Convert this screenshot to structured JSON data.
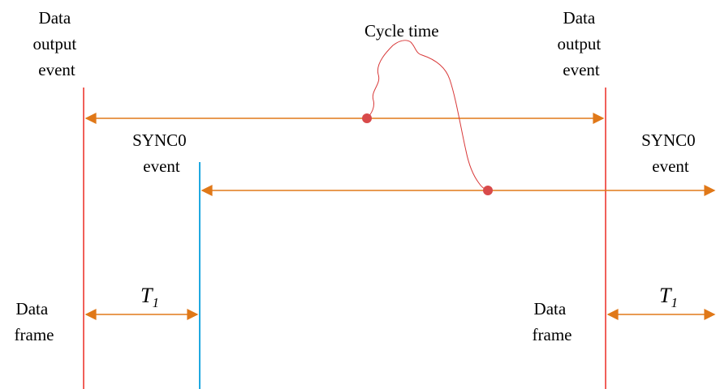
{
  "labels": {
    "data_output_left": [
      "Data",
      "output",
      "event"
    ],
    "data_output_right": [
      "Data",
      "output",
      "event"
    ],
    "cycle_time": "Cycle time",
    "sync0_left": [
      "SYNC0",
      "event"
    ],
    "sync0_right": [
      "SYNC0",
      "event"
    ],
    "data_frame_left": [
      "Data",
      "frame"
    ],
    "data_frame_right": [
      "Data",
      "frame"
    ],
    "t1_left": {
      "symbol": "T",
      "subscript": "1"
    },
    "t1_right": {
      "symbol": "T",
      "subscript": "1"
    }
  },
  "colors": {
    "event_line": "#f0605a",
    "sync_line": "#20a8e0",
    "arrow": "#e07818",
    "marker": "#d84a4a",
    "callout": "#d83838"
  }
}
